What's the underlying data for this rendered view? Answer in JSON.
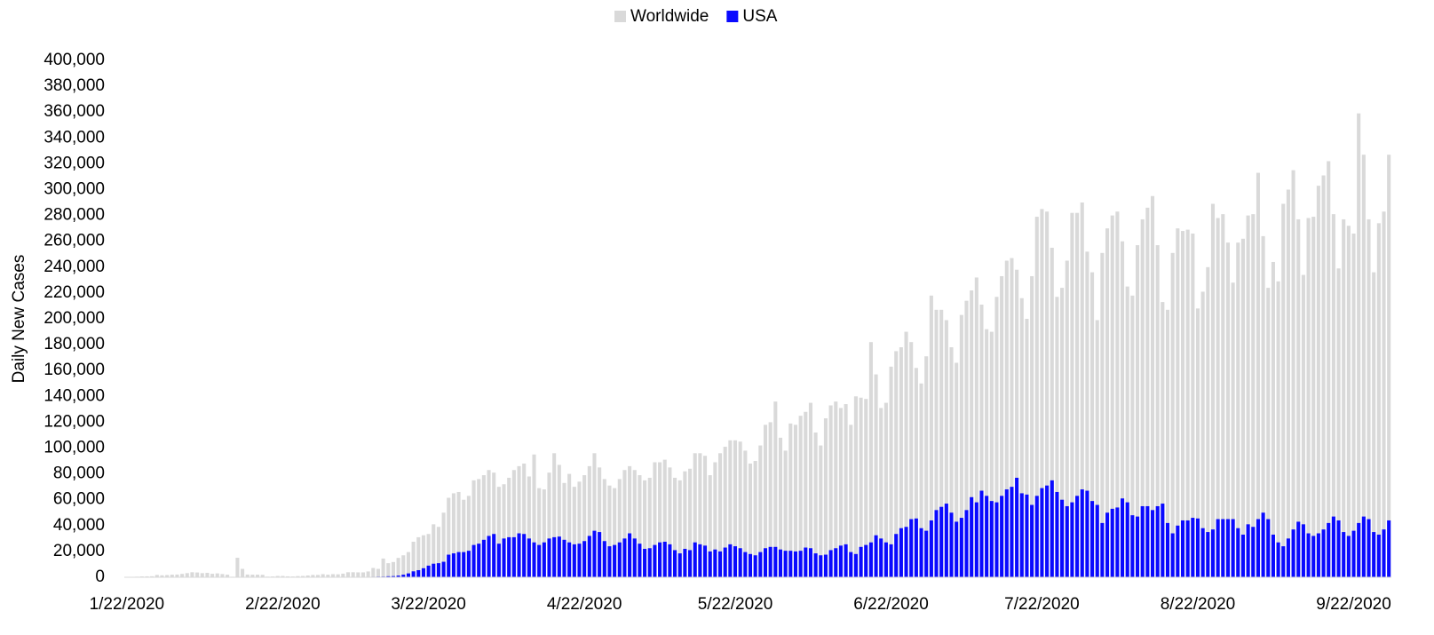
{
  "chart_data": {
    "type": "bar",
    "y_label": "Daily New Cases",
    "categories": [
      "1/22/2020",
      null,
      null,
      null,
      null,
      null,
      null,
      null,
      null,
      null,
      null,
      null,
      null,
      null,
      null,
      null,
      null,
      null,
      null,
      null,
      null,
      null,
      null,
      null,
      null,
      null,
      null,
      null,
      null,
      null,
      null,
      "2/22/2020",
      null,
      null,
      null,
      null,
      null,
      null,
      null,
      null,
      null,
      null,
      null,
      null,
      null,
      null,
      null,
      null,
      null,
      null,
      null,
      null,
      null,
      null,
      null,
      null,
      null,
      null,
      null,
      null,
      "3/22/2020",
      null,
      null,
      null,
      null,
      null,
      null,
      null,
      null,
      null,
      null,
      null,
      null,
      null,
      null,
      null,
      null,
      null,
      null,
      null,
      null,
      null,
      null,
      null,
      null,
      null,
      null,
      null,
      null,
      null,
      null,
      "4/22/2020",
      null,
      null,
      null,
      null,
      null,
      null,
      null,
      null,
      null,
      null,
      null,
      null,
      null,
      null,
      null,
      null,
      null,
      null,
      null,
      null,
      null,
      null,
      null,
      null,
      null,
      null,
      null,
      null,
      null,
      "5/22/2020",
      null,
      null,
      null,
      null,
      null,
      null,
      null,
      null,
      null,
      null,
      null,
      null,
      null,
      null,
      null,
      null,
      null,
      null,
      null,
      null,
      null,
      null,
      null,
      null,
      null,
      null,
      null,
      null,
      null,
      null,
      "6/22/2020",
      null,
      null,
      null,
      null,
      null,
      null,
      null,
      null,
      null,
      null,
      null,
      null,
      null,
      null,
      null,
      null,
      null,
      null,
      null,
      null,
      null,
      null,
      null,
      null,
      null,
      null,
      null,
      null,
      null,
      "7/22/2020",
      null,
      null,
      null,
      null,
      null,
      null,
      null,
      null,
      null,
      null,
      null,
      null,
      null,
      null,
      null,
      null,
      null,
      null,
      null,
      null,
      null,
      null,
      null,
      null,
      null,
      null,
      null,
      null,
      null,
      null,
      "8/22/2020",
      null,
      null,
      null,
      null,
      null,
      null,
      null,
      null,
      null,
      null,
      null,
      null,
      null,
      null,
      null,
      null,
      null,
      null,
      null,
      null,
      null,
      null,
      null,
      null,
      null,
      null,
      null,
      null,
      null,
      null,
      "9/22/2020",
      null,
      null,
      null,
      null,
      null,
      null,
      null
    ],
    "series": [
      {
        "name": "Worldwide",
        "color": "#d9d9d9",
        "values": [
          100,
          250,
          450,
          650,
          700,
          800,
          1800,
          1500,
          1700,
          2000,
          2100,
          2600,
          3200,
          3900,
          3700,
          3200,
          3400,
          2700,
          3000,
          2500,
          2000,
          400,
          15100,
          6500,
          2100,
          2000,
          2000,
          1900,
          500,
          600,
          1000,
          1000,
          700,
          600,
          900,
          1000,
          1400,
          1800,
          1800,
          2400,
          2000,
          2400,
          2300,
          2800,
          3900,
          3900,
          3800,
          3800,
          4500,
          7200,
          6500,
          14500,
          10900,
          11800,
          15000,
          17000,
          19500,
          27500,
          31000,
          32500,
          33500,
          41000,
          39000,
          50000,
          61500,
          65000,
          66000,
          60000,
          63000,
          75000,
          76000,
          79000,
          83000,
          81000,
          70000,
          72000,
          77000,
          83000,
          86000,
          88000,
          78000,
          95000,
          69000,
          68000,
          81000,
          96000,
          87000,
          73000,
          80000,
          70000,
          74000,
          79000,
          86000,
          96000,
          85000,
          76000,
          71000,
          69000,
          76000,
          83000,
          86000,
          83000,
          79000,
          75000,
          77000,
          89000,
          89000,
          91000,
          85000,
          77000,
          75000,
          82000,
          84000,
          96000,
          96000,
          94000,
          79000,
          89000,
          96000,
          101000,
          106000,
          106000,
          105000,
          98000,
          88000,
          90000,
          102000,
          118000,
          120000,
          136000,
          108000,
          98000,
          119000,
          118000,
          125000,
          128000,
          135000,
          112000,
          102000,
          123000,
          133000,
          136000,
          131000,
          134000,
          118000,
          140000,
          139000,
          138000,
          182000,
          157000,
          131000,
          135000,
          163000,
          175000,
          178000,
          190000,
          182000,
          162000,
          150000,
          171000,
          218000,
          207000,
          207000,
          199000,
          178000,
          166000,
          203000,
          214000,
          222000,
          232000,
          211000,
          192000,
          190000,
          217000,
          233000,
          245000,
          247000,
          238000,
          216000,
          200000,
          233000,
          279000,
          285000,
          283000,
          255000,
          217000,
          224000,
          245000,
          282000,
          282000,
          290000,
          252000,
          236000,
          199000,
          251000,
          270000,
          280000,
          283000,
          260000,
          225000,
          218000,
          257000,
          277000,
          286000,
          295000,
          257000,
          213000,
          207000,
          251000,
          270000,
          268000,
          269000,
          266000,
          208000,
          221000,
          240000,
          289000,
          278000,
          281000,
          259000,
          228000,
          259000,
          262000,
          280000,
          281000,
          313000,
          264000,
          224000,
          244000,
          229000,
          289000,
          300000,
          315000,
          277000,
          234000,
          278000,
          279000,
          303000,
          311000,
          322000,
          281000,
          239000,
          277000,
          272000,
          266000,
          359000,
          327000,
          277000,
          236000,
          274000,
          283000,
          327000
        ]
      },
      {
        "name": "USA",
        "color": "#0a0aff",
        "values": [
          0,
          0,
          0,
          0,
          0,
          0,
          0,
          0,
          0,
          0,
          0,
          0,
          0,
          0,
          0,
          0,
          0,
          0,
          0,
          0,
          0,
          0,
          0,
          0,
          0,
          0,
          0,
          0,
          0,
          0,
          0,
          0,
          0,
          0,
          0,
          0,
          0,
          0,
          0,
          10,
          20,
          25,
          30,
          70,
          60,
          120,
          110,
          150,
          300,
          370,
          460,
          520,
          800,
          900,
          1300,
          2000,
          3000,
          4600,
          5500,
          7000,
          9000,
          10500,
          10900,
          12000,
          17500,
          18500,
          19500,
          19500,
          20500,
          25000,
          26000,
          29000,
          32000,
          33500,
          26000,
          30000,
          31000,
          31000,
          34000,
          33500,
          30000,
          27000,
          25000,
          27000,
          30000,
          31000,
          31500,
          29000,
          27000,
          25500,
          26000,
          28000,
          32000,
          36000,
          35000,
          28000,
          24000,
          25000,
          27000,
          30000,
          34000,
          30000,
          26000,
          22000,
          22500,
          25000,
          27000,
          27500,
          25500,
          21000,
          18500,
          22000,
          21000,
          27000,
          25500,
          24500,
          20000,
          21500,
          20000,
          23000,
          25500,
          24000,
          22500,
          19500,
          18000,
          17000,
          19500,
          22500,
          23500,
          23500,
          21500,
          20500,
          20500,
          20000,
          20500,
          23000,
          22500,
          18500,
          17000,
          17500,
          21000,
          22500,
          24500,
          25500,
          19500,
          18000,
          23500,
          25000,
          27000,
          32500,
          30000,
          27000,
          25500,
          33500,
          38000,
          39000,
          45000,
          45500,
          38000,
          36000,
          44000,
          52000,
          54500,
          57000,
          50000,
          43000,
          46000,
          52000,
          62000,
          58000,
          67000,
          63000,
          59000,
          58000,
          63000,
          68000,
          70000,
          77000,
          65000,
          64000,
          56000,
          63000,
          69000,
          71000,
          75000,
          66000,
          60000,
          55000,
          58000,
          63000,
          68000,
          67000,
          59000,
          56000,
          42000,
          50000,
          53000,
          54000,
          61000,
          58000,
          48000,
          47000,
          55000,
          55000,
          52000,
          55000,
          57000,
          42000,
          34000,
          40000,
          44000,
          44000,
          46000,
          45500,
          38000,
          35000,
          37000,
          45000,
          45000,
          45000,
          45000,
          38000,
          33000,
          41000,
          39000,
          45000,
          50000,
          45000,
          33000,
          27000,
          24000,
          30000,
          37000,
          43000,
          41000,
          34000,
          32000,
          34000,
          37000,
          42000,
          47000,
          44000,
          35000,
          32000,
          36000,
          42000,
          47000,
          45000,
          35000,
          33000,
          37000,
          44000
        ]
      }
    ],
    "ylim": [
      0,
      400000
    ],
    "yticks": [
      0,
      {
        "value": 20000,
        "label": "20,000"
      },
      {
        "value": 40000,
        "label": "40,000"
      },
      {
        "value": 60000,
        "label": "60,000"
      },
      {
        "value": 80000,
        "label": "80,000"
      },
      {
        "value": 100000,
        "label": "100,000"
      },
      {
        "value": 120000,
        "label": "120,000"
      },
      {
        "value": 140000,
        "label": "140,000"
      },
      {
        "value": 160000,
        "label": "160,000"
      },
      {
        "value": 180000,
        "label": "180,000"
      },
      {
        "value": 200000,
        "label": "200,000"
      },
      {
        "value": 220000,
        "label": "220,000"
      },
      {
        "value": 240000,
        "label": "240,000"
      },
      {
        "value": 260000,
        "label": "260,000"
      },
      {
        "value": 280000,
        "label": "280,000"
      },
      {
        "value": 300000,
        "label": "300,000"
      },
      {
        "value": 320000,
        "label": "320,000"
      },
      {
        "value": 340000,
        "label": "340,000"
      },
      {
        "value": 360000,
        "label": "360,000"
      },
      {
        "value": 380000,
        "label": "380,000"
      },
      {
        "value": 400000,
        "label": "400,000"
      }
    ],
    "legend": "top",
    "grid": false
  }
}
